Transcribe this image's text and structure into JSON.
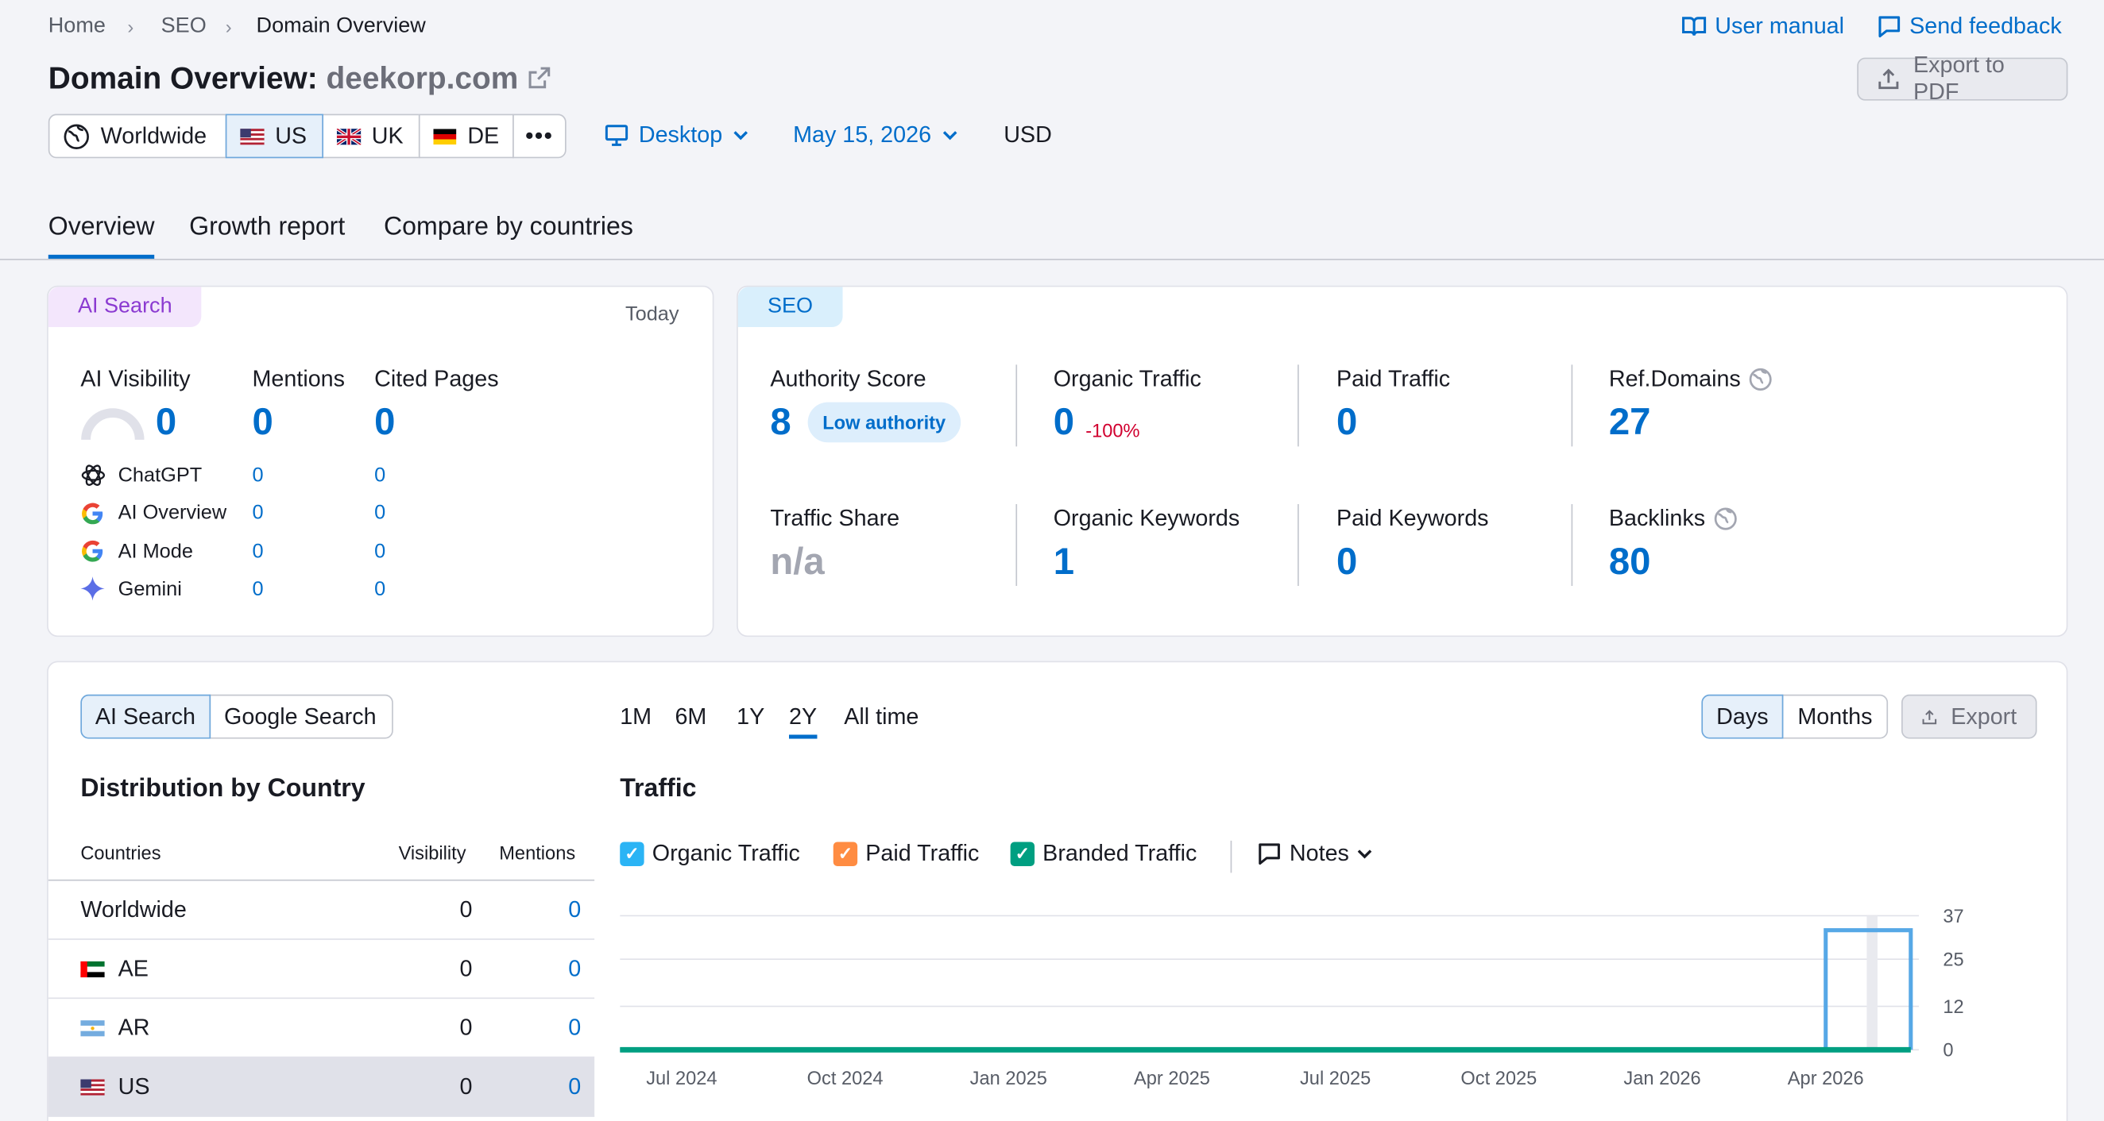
{
  "breadcrumb": [
    "Home",
    "SEO",
    "Domain Overview"
  ],
  "header": {
    "user_manual": "User manual",
    "send_feedback": "Send feedback",
    "title_prefix": "Domain Overview:",
    "domain": "deekorp.com",
    "export_pdf": "Export to PDF"
  },
  "regions": [
    {
      "label": "Worldwide",
      "icon": "globe-icon",
      "selected": false
    },
    {
      "label": "US",
      "icon": "us-flag-icon",
      "selected": true
    },
    {
      "label": "UK",
      "icon": "uk-flag-icon",
      "selected": false
    },
    {
      "label": "DE",
      "icon": "de-flag-icon",
      "selected": false
    }
  ],
  "filters": {
    "device": "Desktop",
    "date": "May 15, 2026",
    "currency": "USD"
  },
  "tabs": [
    "Overview",
    "Growth report",
    "Compare by countries"
  ],
  "ai_search": {
    "chip": "AI Search",
    "date_label": "Today",
    "visibility_label": "AI Visibility",
    "visibility_value": "0",
    "mentions_label": "Mentions",
    "mentions_value": "0",
    "cited_label": "Cited Pages",
    "cited_value": "0",
    "platforms": [
      {
        "name": "ChatGPT",
        "icon": "chatgpt-icon",
        "mentions": "0",
        "cited": "0"
      },
      {
        "name": "AI Overview",
        "icon": "google-icon",
        "mentions": "0",
        "cited": "0"
      },
      {
        "name": "AI Mode",
        "icon": "google-icon",
        "mentions": "0",
        "cited": "0"
      },
      {
        "name": "Gemini",
        "icon": "gemini-icon",
        "mentions": "0",
        "cited": "0"
      }
    ]
  },
  "seo": {
    "chip": "SEO",
    "authority_label": "Authority Score",
    "authority_value": "8",
    "authority_badge": "Low authority",
    "organic_traffic_label": "Organic Traffic",
    "organic_traffic_value": "0",
    "organic_traffic_change": "-100%",
    "paid_traffic_label": "Paid Traffic",
    "paid_traffic_value": "0",
    "ref_domains_label": "Ref.Domains",
    "ref_domains_value": "27",
    "traffic_share_label": "Traffic Share",
    "traffic_share_value": "n/a",
    "organic_keywords_label": "Organic Keywords",
    "organic_keywords_value": "1",
    "paid_keywords_label": "Paid Keywords",
    "paid_keywords_value": "0",
    "backlinks_label": "Backlinks",
    "backlinks_value": "80"
  },
  "distribution": {
    "toggle": [
      "AI Search",
      "Google Search"
    ],
    "title": "Distribution by Country",
    "columns": [
      "Countries",
      "Visibility",
      "Mentions"
    ],
    "rows": [
      {
        "country": "Worldwide",
        "flag": "",
        "visibility": "0",
        "mentions": "0",
        "highlight": false
      },
      {
        "country": "AE",
        "flag": "ae-flag-icon",
        "visibility": "0",
        "mentions": "0",
        "highlight": false
      },
      {
        "country": "AR",
        "flag": "ar-flag-icon",
        "visibility": "0",
        "mentions": "0",
        "highlight": false
      },
      {
        "country": "US",
        "flag": "us-flag-icon",
        "visibility": "0",
        "mentions": "0",
        "highlight": true
      }
    ]
  },
  "traffic": {
    "periods": [
      "1M",
      "6M",
      "1Y",
      "2Y",
      "All time"
    ],
    "active_period": "2Y",
    "granularity": [
      "Days",
      "Months"
    ],
    "export": "Export",
    "title": "Traffic",
    "legend": [
      {
        "label": "Organic Traffic",
        "color": "#2bb4f5"
      },
      {
        "label": "Paid Traffic",
        "color": "#ff8c42"
      },
      {
        "label": "Branded Traffic",
        "color": "#009f81"
      }
    ],
    "notes": "Notes"
  },
  "chart_data": {
    "type": "line",
    "x_tick_labels": [
      "Jul 2024",
      "Oct 2024",
      "Jan 2025",
      "Apr 2025",
      "Jul 2025",
      "Oct 2025",
      "Jan 2026",
      "Apr 2026"
    ],
    "y_tick_labels": [
      "37",
      "25",
      "12",
      "0"
    ],
    "ylim": [
      0,
      37
    ],
    "series": [
      {
        "name": "Organic Traffic",
        "color": "#56a8e6",
        "points": [
          [
            "Jul 2024",
            0
          ],
          [
            "Apr 2026",
            0
          ],
          [
            "Apr 2026",
            33
          ],
          [
            "May 2026",
            33
          ],
          [
            "May 2026",
            0
          ]
        ]
      },
      {
        "name": "Branded Traffic",
        "color": "#009f81",
        "points": [
          [
            "Jul 2024",
            0
          ],
          [
            "May 2026",
            0
          ]
        ]
      }
    ]
  }
}
